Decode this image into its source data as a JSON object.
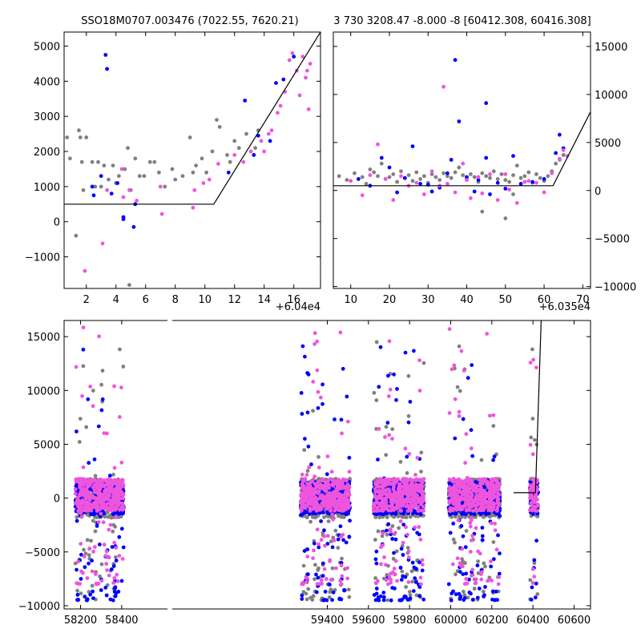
{
  "chart_data": [
    {
      "id": "top-left",
      "type": "scatter",
      "title": "SSO18M0707.003476 (7022.55, 7620.21)",
      "xlim": [
        0.5,
        17.8
      ],
      "ylim": [
        -1900,
        5400
      ],
      "x_offset_label": "+6.04e4",
      "x_ticks": [
        2,
        4,
        6,
        8,
        10,
        12,
        14,
        16
      ],
      "y_ticks": [
        -1000,
        0,
        1000,
        2000,
        3000,
        4000,
        5000
      ],
      "y_axis_side": "left",
      "series": [
        {
          "color": "#808080",
          "points": [
            [
              0.7,
              2400
            ],
            [
              0.9,
              1800
            ],
            [
              1.5,
              2600
            ],
            [
              1.6,
              2400
            ],
            [
              1.7,
              1700
            ],
            [
              1.8,
              900
            ],
            [
              2.0,
              2400
            ],
            [
              2.4,
              1700
            ],
            [
              2.6,
              1000
            ],
            [
              2.8,
              1700
            ],
            [
              3.0,
              1000
            ],
            [
              3.2,
              1600
            ],
            [
              3.5,
              1200
            ],
            [
              3.8,
              1600
            ],
            [
              4.0,
              1100
            ],
            [
              4.2,
              1300
            ],
            [
              4.6,
              1500
            ],
            [
              4.8,
              2100
            ],
            [
              5.0,
              900
            ],
            [
              5.3,
              1800
            ],
            [
              5.6,
              1300
            ],
            [
              5.9,
              1300
            ],
            [
              6.3,
              1700
            ],
            [
              6.6,
              1700
            ],
            [
              6.9,
              1400
            ],
            [
              7.3,
              1000
            ],
            [
              7.8,
              1500
            ],
            [
              8.0,
              1200
            ],
            [
              8.5,
              1300
            ],
            [
              9.0,
              2400
            ],
            [
              9.4,
              1600
            ],
            [
              9.8,
              1800
            ],
            [
              10.1,
              1400
            ],
            [
              10.5,
              2000
            ],
            [
              10.8,
              2900
            ],
            [
              11.0,
              2700
            ],
            [
              11.5,
              1900
            ],
            [
              11.7,
              1700
            ],
            [
              12.0,
              2300
            ],
            [
              12.3,
              2100
            ],
            [
              12.8,
              2500
            ],
            [
              13.4,
              2100
            ],
            [
              13.6,
              2600
            ],
            [
              1.3,
              -400
            ],
            [
              4.9,
              -1800
            ],
            [
              9.2,
              1400
            ]
          ]
        },
        {
          "color": "#0000ff",
          "points": [
            [
              2.4,
              1000
            ],
            [
              2.5,
              750
            ],
            [
              3.0,
              1300
            ],
            [
              3.3,
              4750
            ],
            [
              3.4,
              4350
            ],
            [
              3.7,
              800
            ],
            [
              4.1,
              1100
            ],
            [
              4.5,
              130
            ],
            [
              4.5,
              70
            ],
            [
              5.2,
              -150
            ],
            [
              5.3,
              500
            ],
            [
              11.6,
              1400
            ],
            [
              12.7,
              3450
            ],
            [
              13.3,
              1900
            ],
            [
              13.6,
              2450
            ],
            [
              14.4,
              2300
            ],
            [
              14.8,
              3950
            ],
            [
              15.3,
              4050
            ],
            [
              16.0,
              4700
            ]
          ]
        },
        {
          "color": "#ee55dd",
          "points": [
            [
              1.9,
              -1400
            ],
            [
              3.1,
              -620
            ],
            [
              3.4,
              900
            ],
            [
              4.4,
              1500
            ],
            [
              4.5,
              700
            ],
            [
              4.9,
              900
            ],
            [
              5.4,
              600
            ],
            [
              7.0,
              1000
            ],
            [
              7.1,
              220
            ],
            [
              9.2,
              400
            ],
            [
              9.3,
              900
            ],
            [
              9.9,
              1100
            ],
            [
              10.3,
              1200
            ],
            [
              10.9,
              1650
            ],
            [
              12.0,
              1900
            ],
            [
              12.6,
              1700
            ],
            [
              13.1,
              2000
            ],
            [
              13.8,
              2300
            ],
            [
              14.0,
              2000
            ],
            [
              14.3,
              2500
            ],
            [
              14.5,
              2600
            ],
            [
              14.9,
              3100
            ],
            [
              15.1,
              3300
            ],
            [
              15.4,
              3700
            ],
            [
              15.7,
              4600
            ],
            [
              15.9,
              4800
            ],
            [
              16.2,
              4300
            ],
            [
              16.4,
              3600
            ],
            [
              16.8,
              4100
            ],
            [
              16.9,
              4300
            ],
            [
              17.0,
              3200
            ],
            [
              17.1,
              4500
            ],
            [
              16.6,
              4700
            ]
          ]
        }
      ],
      "model_line": [
        [
          0.5,
          500
        ],
        [
          10.6,
          500
        ],
        [
          17.8,
          5400
        ]
      ]
    },
    {
      "id": "top-right",
      "type": "scatter",
      "title": "3 730 3208.47 -8.000 -8 [60412.308, 60416.308]",
      "xlim": [
        5.5,
        72
      ],
      "ylim": [
        -10200,
        16500
      ],
      "x_offset_label": "+6.035e4",
      "x_ticks": [
        10,
        20,
        30,
        40,
        50,
        60,
        70
      ],
      "y_ticks": [
        -10000,
        -5000,
        0,
        5000,
        10000,
        15000
      ],
      "y_axis_side": "right",
      "series": [
        {
          "color": "#808080",
          "points": [
            [
              7,
              1500
            ],
            [
              9,
              1100
            ],
            [
              11,
              1800
            ],
            [
              13,
              1400
            ],
            [
              14,
              700
            ],
            [
              15,
              2200
            ],
            [
              16,
              1900
            ],
            [
              17,
              1500
            ],
            [
              18,
              2800
            ],
            [
              19,
              1200
            ],
            [
              20,
              1400
            ],
            [
              21,
              1700
            ],
            [
              22,
              900
            ],
            [
              23,
              2000
            ],
            [
              24,
              1300
            ],
            [
              25,
              1600
            ],
            [
              26,
              1000
            ],
            [
              27,
              1900
            ],
            [
              28,
              1200
            ],
            [
              29,
              1500
            ],
            [
              30,
              800
            ],
            [
              31,
              1700
            ],
            [
              32,
              1400
            ],
            [
              33,
              1100
            ],
            [
              34,
              1800
            ],
            [
              35,
              1500
            ],
            [
              36,
              1300
            ],
            [
              37,
              1900
            ],
            [
              38,
              2400
            ],
            [
              39,
              1600
            ],
            [
              40,
              1200
            ],
            [
              41,
              1700
            ],
            [
              42,
              1400
            ],
            [
              43,
              900
            ],
            [
              44,
              1800
            ],
            [
              45,
              1500
            ],
            [
              46,
              1300
            ],
            [
              47,
              2000
            ],
            [
              48,
              1200
            ],
            [
              49,
              1700
            ],
            [
              50,
              1100
            ],
            [
              51,
              900
            ],
            [
              52,
              1600
            ],
            [
              53,
              2600
            ],
            [
              54,
              1300
            ],
            [
              55,
              1500
            ],
            [
              56,
              1900
            ],
            [
              57,
              800
            ],
            [
              58,
              1700
            ],
            [
              59,
              1300
            ],
            [
              60,
              1000
            ],
            [
              61,
              1500
            ],
            [
              62,
              2000
            ],
            [
              63,
              2800
            ],
            [
              64,
              3200
            ],
            [
              65,
              3700
            ],
            [
              50,
              -2900
            ],
            [
              44,
              -2200
            ],
            [
              52,
              -400
            ]
          ]
        },
        {
          "color": "#0000ff",
          "points": [
            [
              12,
              1200
            ],
            [
              15,
              500
            ],
            [
              18,
              3400
            ],
            [
              20,
              2400
            ],
            [
              22,
              -200
            ],
            [
              24,
              1300
            ],
            [
              26,
              4600
            ],
            [
              28,
              700
            ],
            [
              30,
              600
            ],
            [
              31,
              -100
            ],
            [
              33,
              300
            ],
            [
              35,
              1800
            ],
            [
              36,
              3200
            ],
            [
              37,
              13600
            ],
            [
              38,
              7200
            ],
            [
              40,
              1400
            ],
            [
              42,
              -100
            ],
            [
              43,
              1100
            ],
            [
              45,
              9100
            ],
            [
              45,
              3400
            ],
            [
              46,
              -400
            ],
            [
              48,
              800
            ],
            [
              50,
              200
            ],
            [
              52,
              3600
            ],
            [
              54,
              700
            ],
            [
              57,
              900
            ],
            [
              60,
              1200
            ],
            [
              63,
              3900
            ],
            [
              64,
              5800
            ],
            [
              65,
              4400
            ]
          ]
        },
        {
          "color": "#ee55dd",
          "points": [
            [
              10,
              1000
            ],
            [
              13,
              -500
            ],
            [
              15,
              1600
            ],
            [
              17,
              4800
            ],
            [
              19,
              1200
            ],
            [
              21,
              -1000
            ],
            [
              23,
              1500
            ],
            [
              25,
              500
            ],
            [
              27,
              800
            ],
            [
              29,
              -400
            ],
            [
              31,
              2000
            ],
            [
              33,
              500
            ],
            [
              34,
              10800
            ],
            [
              35,
              700
            ],
            [
              37,
              -200
            ],
            [
              39,
              2800
            ],
            [
              40,
              1100
            ],
            [
              41,
              -800
            ],
            [
              43,
              1400
            ],
            [
              44,
              -300
            ],
            [
              46,
              1700
            ],
            [
              48,
              -1000
            ],
            [
              50,
              1700
            ],
            [
              51,
              100
            ],
            [
              53,
              -1300
            ],
            [
              55,
              900
            ],
            [
              56,
              1000
            ],
            [
              58,
              800
            ],
            [
              60,
              -200
            ],
            [
              62,
              1800
            ],
            [
              64,
              3300
            ],
            [
              65,
              4200
            ],
            [
              66,
              3600
            ]
          ]
        }
      ],
      "model_line": [
        [
          5.5,
          500
        ],
        [
          62.3,
          500
        ],
        [
          72,
          8200
        ]
      ]
    },
    {
      "id": "bottom",
      "type": "scatter",
      "xlim": [
        58120,
        60680
      ],
      "ylim": [
        -10300,
        16500
      ],
      "x_ticks": [
        58200,
        58400,
        59400,
        59600,
        59800,
        60000,
        60200,
        60400,
        60600
      ],
      "y_ticks": [
        -10000,
        -5000,
        0,
        5000,
        10000,
        15000
      ],
      "y_axis_side": "left",
      "season_ranges": [
        [
          58175,
          58410
        ],
        [
          59270,
          59510
        ],
        [
          59625,
          59870
        ],
        [
          59990,
          60240
        ],
        [
          60385,
          60425
        ]
      ],
      "series": [
        {
          "color": "#808080",
          "band": [
            -1800,
            1800
          ],
          "spread": [
            -9500,
            15500
          ]
        },
        {
          "color": "#0000ff",
          "band": [
            -1500,
            1500
          ],
          "spread": [
            -9500,
            15000
          ]
        },
        {
          "color": "#ee55dd",
          "band": [
            -1200,
            1800
          ],
          "spread": [
            -8000,
            16000
          ]
        }
      ],
      "model_line": [
        [
          60306,
          500
        ],
        [
          60412.3,
          500
        ],
        [
          60440,
          16500
        ]
      ]
    }
  ]
}
